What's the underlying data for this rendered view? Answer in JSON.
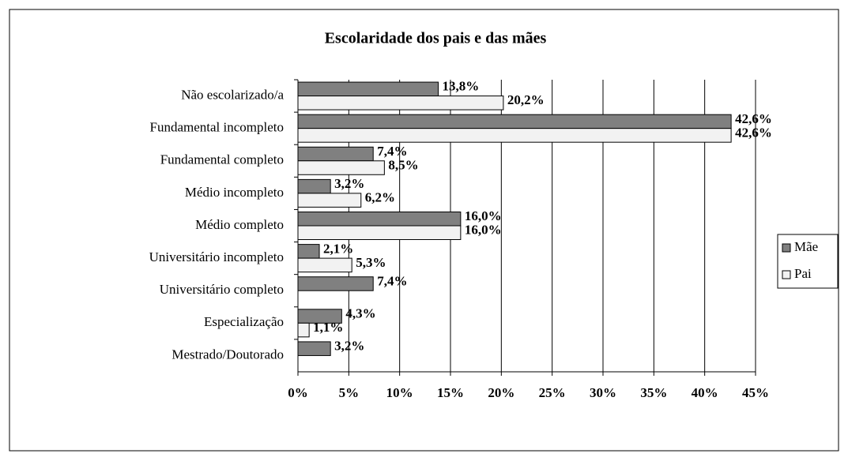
{
  "chart_data": {
    "type": "barh",
    "title": "Escolaridade dos pais e das mães",
    "categories": [
      "Não escolarizado/a",
      "Fundamental incompleto",
      "Fundamental completo",
      "Médio incompleto",
      "Médio completo",
      "Universitário incompleto",
      "Universitário completo",
      "Especialização",
      "Mestrado/Doutorado"
    ],
    "series": [
      {
        "name": "Mãe",
        "color": "#808080",
        "values": [
          13.8,
          42.6,
          7.4,
          3.2,
          16.0,
          2.1,
          7.4,
          4.3,
          3.2
        ],
        "value_labels": [
          "13,8%",
          "42,6%",
          "7,4%",
          "3,2%",
          "16,0%",
          "2,1%",
          "7,4%",
          "4,3%",
          "3,2%"
        ]
      },
      {
        "name": "Pai",
        "color": "#f2f2f2",
        "values": [
          20.2,
          42.6,
          8.5,
          6.2,
          16.0,
          5.3,
          null,
          1.1,
          null
        ],
        "value_labels": [
          "20,2%",
          "42,6%",
          "8,5%",
          "6,2%",
          "16,0%",
          "5,3%",
          null,
          "1,1%",
          null
        ]
      }
    ],
    "xlim": [
      0,
      45
    ],
    "xticks": [
      {
        "value": 0,
        "label": "0%"
      },
      {
        "value": 5,
        "label": "5%"
      },
      {
        "value": 10,
        "label": "10%"
      },
      {
        "value": 15,
        "label": "15%"
      },
      {
        "value": 20,
        "label": "20%"
      },
      {
        "value": 25,
        "label": "25%"
      },
      {
        "value": 30,
        "label": "30%"
      },
      {
        "value": 35,
        "label": "35%"
      },
      {
        "value": 40,
        "label": "40%"
      },
      {
        "value": 45,
        "label": "45%"
      }
    ],
    "grid": true,
    "legend": "right"
  }
}
